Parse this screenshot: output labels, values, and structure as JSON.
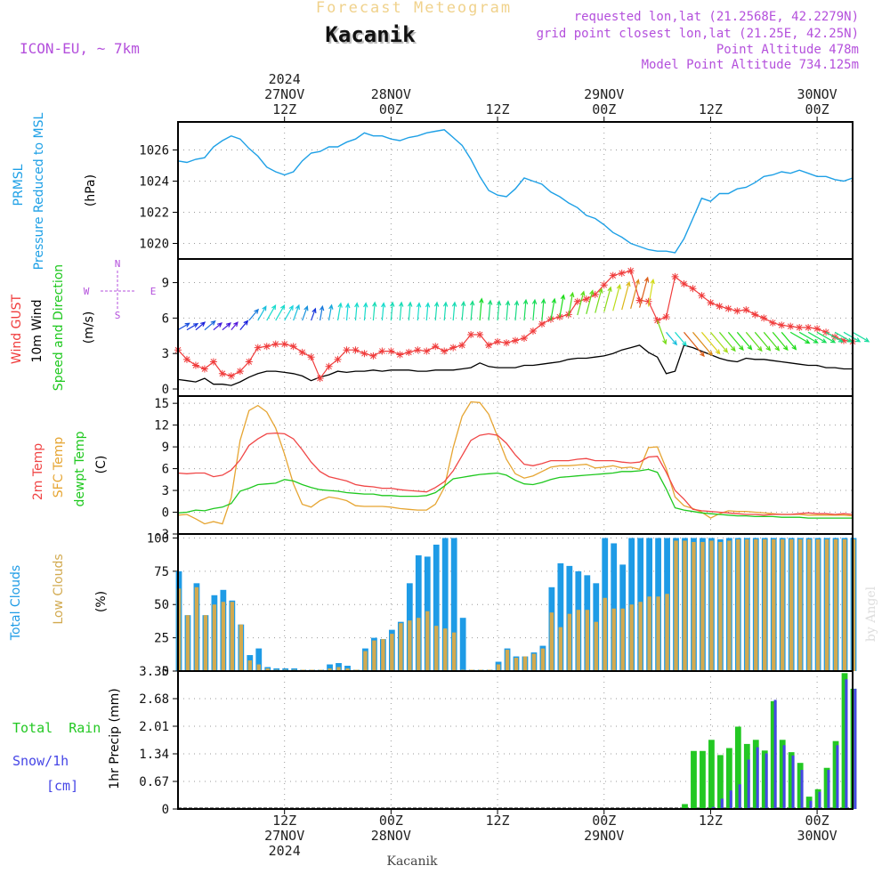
{
  "header": {
    "title": "Forecast Meteogram",
    "location": "Kacanik",
    "model": "ICON-EU, ~ 7km",
    "info": [
      "requested lon,lat (21.2568E, 42.2279N)",
      "grid point closest lon,lat (21.25E, 42.25N)",
      "Point Altitude 478m",
      "Model Point Altitude 734.125m"
    ],
    "footer_location": "Kacanik",
    "watermark": "by Angel"
  },
  "time_axis": {
    "top_labels": [
      {
        "h": 12,
        "lines": [
          "2024",
          "27NOV",
          "12Z"
        ]
      },
      {
        "h": 24,
        "lines": [
          "28NOV",
          "00Z"
        ]
      },
      {
        "h": 36,
        "lines": [
          "12Z"
        ]
      },
      {
        "h": 48,
        "lines": [
          "29NOV",
          "00Z"
        ]
      },
      {
        "h": 60,
        "lines": [
          "12Z"
        ]
      },
      {
        "h": 72,
        "lines": [
          "30NOV",
          "00Z"
        ]
      }
    ],
    "bottom_labels": [
      {
        "h": 12,
        "lines": [
          "12Z",
          "27NOV",
          "2024"
        ]
      },
      {
        "h": 24,
        "lines": [
          "00Z",
          "28NOV"
        ]
      },
      {
        "h": 36,
        "lines": [
          "12Z"
        ]
      },
      {
        "h": 48,
        "lines": [
          "00Z",
          "29NOV"
        ]
      },
      {
        "h": 60,
        "lines": [
          "12Z"
        ]
      },
      {
        "h": 72,
        "lines": [
          "00Z",
          "30NOV"
        ]
      }
    ]
  },
  "panels": {
    "pressure": {
      "labels": [
        "PRMSL",
        "Pressure Reduced to MSL"
      ],
      "unit": "(hPa)"
    },
    "wind": {
      "labels_gust": "Wind GUST",
      "labels_wind": "10m Wind",
      "labels_dir": "Speed and Direction",
      "unit": "(m/s)",
      "compass": {
        "n": "N",
        "s": "S",
        "w": "W",
        "e": "E"
      }
    },
    "temp": {
      "label_2m": "2m Temp",
      "label_sfc": "SFC Temp",
      "label_dew": "dewpt Temp",
      "unit": "(C)"
    },
    "clouds": {
      "label_total": "Total Clouds",
      "label_low": "Low Clouds",
      "unit": "(%)"
    },
    "precip": {
      "label_rain": "Total  Rain",
      "label_snow": "Snow/1h",
      "label_cm": "[cm]",
      "unit": "1hr Precip (mm)"
    }
  },
  "colors": {
    "pressure": "#1ea0e6",
    "gust": "#f03c3c",
    "wind": "#000000",
    "temp2m": "#f04646",
    "sfc": "#e6a532",
    "dew": "#1ec81e",
    "total_cloud": "#1e9be6",
    "low_cloud": "#d2aa50",
    "rain": "#23c823",
    "snow": "#4646e6",
    "info_text": "#b450dc",
    "title_text": "#f0d28c"
  },
  "chart_data": [
    {
      "type": "line",
      "name": "pressure",
      "x_unit": "hours from 27NOV 00Z",
      "x": [
        0,
        1,
        2,
        3,
        4,
        5,
        6,
        7,
        8,
        9,
        10,
        11,
        12,
        13,
        14,
        15,
        16,
        17,
        18,
        19,
        20,
        21,
        22,
        23,
        24,
        25,
        26,
        27,
        28,
        29,
        30,
        31,
        32,
        33,
        34,
        35,
        36,
        37,
        38,
        39,
        40,
        41,
        42,
        43,
        44,
        45,
        46,
        47,
        48,
        49,
        50,
        51,
        52,
        53,
        54,
        55,
        56,
        57,
        58,
        59,
        60,
        61,
        62,
        63,
        64,
        65,
        66,
        67,
        68,
        69,
        70,
        71,
        72,
        73,
        74,
        75,
        76
      ],
      "y": [
        1025.3,
        1025.2,
        1025.4,
        1025.5,
        1026.2,
        1026.6,
        1026.9,
        1026.7,
        1026.1,
        1025.6,
        1024.9,
        1024.6,
        1024.4,
        1024.6,
        1025.3,
        1025.8,
        1025.9,
        1026.2,
        1026.2,
        1026.5,
        1026.7,
        1027.1,
        1026.9,
        1026.9,
        1026.7,
        1026.6,
        1026.8,
        1026.9,
        1027.1,
        1027.2,
        1027.3,
        1026.8,
        1026.3,
        1025.4,
        1024.3,
        1023.4,
        1023.1,
        1023.0,
        1023.5,
        1024.2,
        1024.0,
        1023.8,
        1023.3,
        1023.0,
        1022.6,
        1022.3,
        1021.8,
        1021.6,
        1021.2,
        1020.7,
        1020.4,
        1020.0,
        1019.8,
        1019.6,
        1019.5,
        1019.5,
        1019.4,
        1020.3,
        1021.6,
        1022.9,
        1022.7,
        1023.2,
        1023.2,
        1023.5,
        1023.6,
        1023.9,
        1024.3,
        1024.4,
        1024.6,
        1024.5,
        1024.7,
        1024.5,
        1024.3,
        1024.3,
        1024.1,
        1024.0,
        1024.2
      ],
      "ylim": [
        1019,
        1027.8
      ],
      "yticks": [
        1020,
        1022,
        1024,
        1026
      ]
    },
    {
      "type": "line",
      "name": "wind",
      "x": [
        0,
        1,
        2,
        3,
        4,
        5,
        6,
        7,
        8,
        9,
        10,
        11,
        12,
        13,
        14,
        15,
        16,
        17,
        18,
        19,
        20,
        21,
        22,
        23,
        24,
        25,
        26,
        27,
        28,
        29,
        30,
        31,
        32,
        33,
        34,
        35,
        36,
        37,
        38,
        39,
        40,
        41,
        42,
        43,
        44,
        45,
        46,
        47,
        48,
        49,
        50,
        51,
        52,
        53,
        54,
        55,
        56,
        57,
        58,
        59,
        60,
        61,
        62,
        63,
        64,
        65,
        66,
        67,
        68,
        69,
        70,
        71,
        72,
        73,
        74,
        75,
        76
      ],
      "gust": [
        3.3,
        2.5,
        2.0,
        1.7,
        2.3,
        1.3,
        1.1,
        1.5,
        2.3,
        3.5,
        3.6,
        3.8,
        3.8,
        3.6,
        3.1,
        2.7,
        0.9,
        1.9,
        2.5,
        3.3,
        3.3,
        3.0,
        2.8,
        3.2,
        3.2,
        2.9,
        3.1,
        3.3,
        3.2,
        3.6,
        3.2,
        3.5,
        3.7,
        4.6,
        4.6,
        3.7,
        4.0,
        3.9,
        4.1,
        4.3,
        4.9,
        5.5,
        5.9,
        6.1,
        6.3,
        7.4,
        7.6,
        8.0,
        8.8,
        9.6,
        9.8,
        10.0,
        7.5,
        7.4,
        5.8,
        6.1,
        9.5,
        8.9,
        8.5,
        7.9,
        7.3,
        7.0,
        6.8,
        6.6,
        6.7,
        6.3,
        6.0,
        5.6,
        5.4,
        5.3,
        5.2,
        5.2,
        5.1,
        4.8,
        4.4,
        4.1,
        4.0
      ],
      "wind": [
        0.8,
        0.7,
        0.6,
        0.9,
        0.4,
        0.4,
        0.3,
        0.6,
        1.0,
        1.3,
        1.5,
        1.5,
        1.4,
        1.3,
        1.1,
        0.7,
        1.0,
        1.2,
        1.5,
        1.4,
        1.5,
        1.5,
        1.6,
        1.5,
        1.6,
        1.6,
        1.6,
        1.5,
        1.5,
        1.6,
        1.6,
        1.6,
        1.7,
        1.8,
        2.2,
        1.9,
        1.8,
        1.8,
        1.8,
        2.0,
        2.0,
        2.1,
        2.2,
        2.3,
        2.5,
        2.6,
        2.6,
        2.7,
        2.8,
        3.0,
        3.3,
        3.5,
        3.7,
        3.1,
        2.7,
        1.3,
        1.5,
        3.7,
        3.5,
        3.2,
        2.9,
        2.6,
        2.4,
        2.3,
        2.6,
        2.5,
        2.5,
        2.4,
        2.3,
        2.2,
        2.1,
        2.0,
        2.0,
        1.8,
        1.8,
        1.7,
        1.7
      ],
      "dir_deg": [
        240,
        240,
        230,
        230,
        230,
        230,
        220,
        220,
        220,
        210,
        210,
        210,
        210,
        200,
        200,
        200,
        190,
        190,
        190,
        185,
        185,
        185,
        185,
        185,
        185,
        185,
        185,
        185,
        185,
        185,
        185,
        185,
        185,
        185,
        185,
        185,
        185,
        185,
        185,
        185,
        185,
        185,
        190,
        190,
        190,
        195,
        195,
        195,
        195,
        195,
        195,
        195,
        195,
        190,
        340,
        320,
        320,
        320,
        320,
        320,
        320,
        320,
        320,
        320,
        320,
        320,
        320,
        320,
        320,
        300,
        300,
        300,
        300,
        300,
        300,
        300,
        300
      ],
      "ylim": [
        -0.6,
        11.0
      ],
      "yticks": [
        0,
        3,
        6,
        9
      ]
    },
    {
      "type": "line",
      "name": "temperature",
      "x": [
        0,
        1,
        2,
        3,
        4,
        5,
        6,
        7,
        8,
        9,
        10,
        11,
        12,
        13,
        14,
        15,
        16,
        17,
        18,
        19,
        20,
        21,
        22,
        23,
        24,
        25,
        26,
        27,
        28,
        29,
        30,
        31,
        32,
        33,
        34,
        35,
        36,
        37,
        38,
        39,
        40,
        41,
        42,
        43,
        44,
        45,
        46,
        47,
        48,
        49,
        50,
        51,
        52,
        53,
        54,
        55,
        56,
        57,
        58,
        59,
        60,
        61,
        62,
        63,
        64,
        65,
        66,
        67,
        68,
        69,
        70,
        71,
        72,
        73,
        74,
        75,
        76
      ],
      "t2m": [
        5.4,
        5.3,
        5.4,
        5.4,
        4.9,
        5.1,
        5.8,
        7.2,
        9.2,
        10.1,
        10.8,
        10.9,
        10.8,
        10.1,
        8.6,
        6.9,
        5.6,
        4.9,
        4.6,
        4.3,
        3.8,
        3.6,
        3.5,
        3.3,
        3.3,
        3.1,
        3.0,
        2.9,
        2.8,
        3.4,
        4.2,
        5.7,
        7.8,
        9.9,
        10.6,
        10.8,
        10.6,
        9.5,
        7.9,
        6.6,
        6.4,
        6.7,
        7.1,
        7.1,
        7.1,
        7.3,
        7.4,
        7.1,
        7.1,
        7.1,
        6.9,
        6.8,
        6.9,
        7.6,
        7.7,
        5.5,
        3.0,
        1.8,
        0.4,
        0.2,
        0.1,
        0.0,
        -0.1,
        -0.2,
        -0.3,
        -0.3,
        -0.4,
        -0.3,
        -0.3,
        -0.3,
        -0.2,
        -0.1,
        -0.2,
        -0.2,
        -0.3,
        -0.2,
        -0.3
      ],
      "sfc": [
        -0.4,
        -0.3,
        -0.9,
        -1.6,
        -1.3,
        -1.6,
        2.0,
        9.9,
        14.0,
        14.7,
        13.8,
        11.6,
        8.0,
        3.9,
        1.1,
        0.7,
        1.6,
        2.1,
        1.9,
        1.6,
        0.9,
        0.8,
        0.8,
        0.8,
        0.7,
        0.5,
        0.4,
        0.3,
        0.3,
        1.1,
        3.4,
        8.9,
        13.2,
        15.2,
        15.1,
        13.5,
        10.4,
        7.3,
        5.3,
        4.7,
        5.0,
        5.6,
        6.2,
        6.4,
        6.4,
        6.5,
        6.6,
        6.1,
        6.2,
        6.4,
        6.1,
        6.2,
        5.9,
        8.9,
        9.0,
        6.0,
        2.1,
        0.9,
        0.5,
        0.0,
        -0.8,
        -0.2,
        0.2,
        0.1,
        0.1,
        0.0,
        -0.1,
        -0.2,
        -0.3,
        -0.3,
        -0.3,
        -0.4,
        -0.4,
        -0.4,
        -0.4,
        -0.4,
        -0.5
      ],
      "dew": [
        -0.1,
        0.0,
        0.3,
        0.2,
        0.5,
        0.7,
        1.2,
        2.9,
        3.3,
        3.8,
        3.9,
        4.0,
        4.5,
        4.3,
        3.8,
        3.4,
        3.1,
        3.0,
        2.9,
        2.7,
        2.6,
        2.5,
        2.5,
        2.3,
        2.3,
        2.2,
        2.2,
        2.2,
        2.3,
        2.7,
        3.6,
        4.6,
        4.8,
        5.0,
        5.2,
        5.3,
        5.4,
        5.1,
        4.4,
        3.9,
        3.8,
        4.1,
        4.5,
        4.8,
        4.9,
        5.0,
        5.1,
        5.2,
        5.3,
        5.4,
        5.6,
        5.6,
        5.7,
        5.9,
        5.5,
        3.2,
        0.6,
        0.3,
        0.1,
        -0.1,
        -0.2,
        -0.3,
        -0.4,
        -0.5,
        -0.5,
        -0.6,
        -0.6,
        -0.6,
        -0.7,
        -0.7,
        -0.7,
        -0.8,
        -0.8,
        -0.8,
        -0.8,
        -0.8,
        -0.8
      ],
      "ylim": [
        -3,
        16
      ],
      "yticks": [
        -3,
        0,
        3,
        6,
        9,
        12,
        15
      ]
    },
    {
      "type": "bar",
      "name": "clouds",
      "x": [
        0,
        1,
        2,
        3,
        4,
        5,
        6,
        7,
        8,
        9,
        10,
        11,
        12,
        13,
        14,
        15,
        16,
        17,
        18,
        19,
        20,
        21,
        22,
        23,
        24,
        25,
        26,
        27,
        28,
        29,
        30,
        31,
        32,
        33,
        34,
        35,
        36,
        37,
        38,
        39,
        40,
        41,
        42,
        43,
        44,
        45,
        46,
        47,
        48,
        49,
        50,
        51,
        52,
        53,
        54,
        55,
        56,
        57,
        58,
        59,
        60,
        61,
        62,
        63,
        64,
        65,
        66,
        67,
        68,
        69,
        70,
        71,
        72,
        73,
        74,
        75,
        76
      ],
      "total": [
        75,
        42,
        66,
        42,
        57,
        61,
        53,
        35,
        12,
        17,
        3,
        2,
        2,
        2,
        1,
        1,
        1,
        5,
        6,
        4,
        1,
        17,
        25,
        24,
        31,
        37,
        66,
        87,
        86,
        95,
        100,
        100,
        40,
        1,
        1,
        1,
        7,
        17,
        11,
        11,
        14,
        19,
        63,
        81,
        79,
        75,
        72,
        66,
        100,
        96,
        80,
        100,
        100,
        100,
        100,
        100,
        100,
        100,
        100,
        100,
        100,
        99,
        100,
        100,
        100,
        100,
        100,
        100,
        100,
        100,
        100,
        100,
        100,
        100,
        100,
        100,
        100
      ],
      "low": [
        62,
        42,
        63,
        42,
        50,
        52,
        52,
        35,
        8,
        5,
        2,
        1,
        1,
        1,
        1,
        1,
        1,
        2,
        3,
        2,
        1,
        15,
        23,
        24,
        28,
        36,
        38,
        40,
        45,
        34,
        32,
        29,
        1,
        1,
        1,
        1,
        5,
        16,
        10,
        11,
        13,
        17,
        44,
        33,
        43,
        46,
        46,
        37,
        55,
        47,
        47,
        50,
        52,
        56,
        56,
        58,
        98,
        98,
        97,
        97,
        98,
        97,
        98,
        99,
        99,
        99,
        99,
        99,
        99,
        99,
        99,
        99,
        99,
        99,
        99,
        99,
        99
      ],
      "ylim": [
        0,
        103
      ],
      "yticks": [
        0,
        25,
        50,
        75,
        100
      ]
    },
    {
      "type": "bar",
      "name": "precip",
      "x": [
        0,
        1,
        2,
        3,
        4,
        5,
        6,
        7,
        8,
        9,
        10,
        11,
        12,
        13,
        14,
        15,
        16,
        17,
        18,
        19,
        20,
        21,
        22,
        23,
        24,
        25,
        26,
        27,
        28,
        29,
        30,
        31,
        32,
        33,
        34,
        35,
        36,
        37,
        38,
        39,
        40,
        41,
        42,
        43,
        44,
        45,
        46,
        47,
        48,
        49,
        50,
        51,
        52,
        53,
        54,
        55,
        56,
        57,
        58,
        59,
        60,
        61,
        62,
        63,
        64,
        65,
        66,
        67,
        68,
        69,
        70,
        71,
        72,
        73,
        74,
        75,
        76
      ],
      "rain": [
        0,
        0,
        0,
        0,
        0,
        0,
        0,
        0,
        0,
        0,
        0,
        0,
        0,
        0,
        0,
        0,
        0,
        0,
        0,
        0,
        0,
        0,
        0,
        0,
        0,
        0,
        0,
        0,
        0,
        0,
        0,
        0,
        0,
        0,
        0,
        0,
        0,
        0,
        0,
        0,
        0,
        0,
        0,
        0,
        0,
        0,
        0,
        0,
        0,
        0,
        0,
        0,
        0,
        0,
        0,
        0,
        0,
        0.12,
        1.41,
        1.41,
        1.68,
        1.31,
        1.48,
        2.0,
        1.58,
        1.68,
        1.42,
        2.62,
        1.68,
        1.38,
        1.12,
        0.3,
        0.48,
        1.0,
        1.65,
        3.3,
        2.92
      ],
      "snow": [
        0,
        0,
        0,
        0,
        0,
        0,
        0,
        0,
        0,
        0,
        0,
        0,
        0,
        0,
        0,
        0,
        0,
        0,
        0,
        0,
        0,
        0,
        0,
        0,
        0,
        0,
        0,
        0,
        0,
        0,
        0,
        0,
        0,
        0,
        0,
        0,
        0,
        0,
        0,
        0,
        0,
        0,
        0,
        0,
        0,
        0,
        0,
        0,
        0,
        0,
        0,
        0,
        0,
        0,
        0,
        0,
        0,
        0,
        0,
        0,
        0.05,
        0.25,
        0.45,
        0.6,
        1.2,
        1.5,
        1.35,
        2.65,
        1.55,
        1.3,
        0.95,
        0.2,
        0.42,
        0.95,
        1.55,
        3.15,
        2.92
      ],
      "ylim": [
        0,
        3.35
      ],
      "yticks": [
        0,
        0.67,
        1.34,
        2.01,
        2.68,
        3.35
      ]
    }
  ]
}
